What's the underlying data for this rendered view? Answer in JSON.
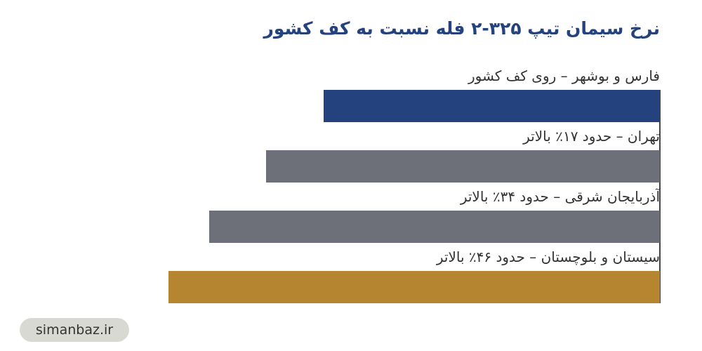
{
  "chart_data": {
    "type": "bar",
    "orientation": "horizontal",
    "direction": "rtl",
    "title": "نرخ سیمان تیپ ۳۲۵-۲ فله نسبت به کف کشور",
    "categories": [
      "فارس و بوشهر – روی کف کشور",
      "تهران – حدود ۱۷٪ بالاتر",
      "آذربایجان شرقی – حدود ۳۴٪ بالاتر",
      "سیستان و بلوچستان – حدود ۴۶٪ بالاتر"
    ],
    "values": [
      100,
      117,
      134,
      146
    ],
    "colors": [
      "#24427d",
      "#6d7079",
      "#6d7079",
      "#b5852f"
    ],
    "xlim": [
      0,
      146
    ],
    "footer": "simanbaz.ir"
  }
}
